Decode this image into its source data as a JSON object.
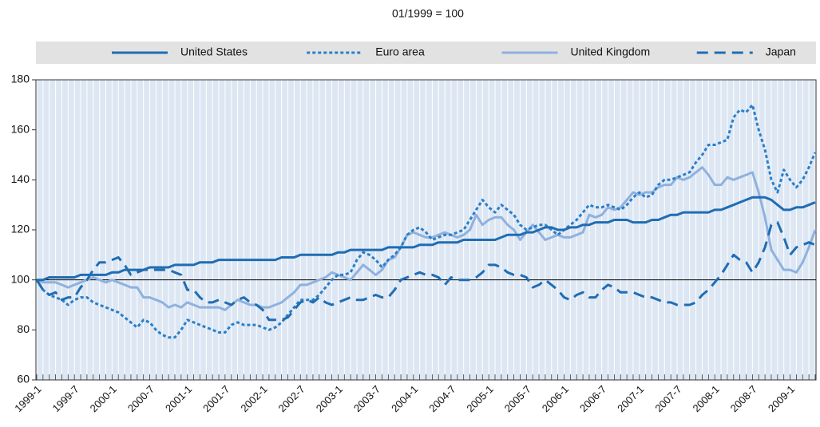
{
  "chart_data": {
    "type": "line",
    "subtitle": "01/1999 = 100",
    "categories": [
      "1999-1",
      null,
      null,
      null,
      null,
      null,
      "1999-7",
      null,
      null,
      null,
      null,
      null,
      "2000-1",
      null,
      null,
      null,
      null,
      null,
      "2000-7",
      null,
      null,
      null,
      null,
      null,
      "2001-1",
      null,
      null,
      null,
      null,
      null,
      "2001-7",
      null,
      null,
      null,
      null,
      null,
      "2002-1",
      null,
      null,
      null,
      null,
      null,
      "2002-7",
      null,
      null,
      null,
      null,
      null,
      "2003-1",
      null,
      null,
      null,
      null,
      null,
      "2003-7",
      null,
      null,
      null,
      null,
      null,
      "2004-1",
      null,
      null,
      null,
      null,
      null,
      "2004-7",
      null,
      null,
      null,
      null,
      null,
      "2005-1",
      null,
      null,
      null,
      null,
      null,
      "2005-7",
      null,
      null,
      null,
      null,
      null,
      "2006-1",
      null,
      null,
      null,
      null,
      null,
      "2006-7",
      null,
      null,
      null,
      null,
      null,
      "2007-1",
      null,
      null,
      null,
      null,
      null,
      "2007-7",
      null,
      null,
      null,
      null,
      null,
      "2008-1",
      null,
      null,
      null,
      null,
      null,
      "2008-7",
      null,
      null,
      null,
      null,
      null,
      "2009-1",
      null,
      null,
      null,
      null
    ],
    "series": [
      {
        "name": "United States",
        "color": "#1f6db3",
        "style": "solid",
        "values": [
          100,
          100,
          101,
          101,
          101,
          101,
          101,
          102,
          102,
          102,
          102,
          102,
          103,
          103,
          104,
          104,
          104,
          104,
          105,
          105,
          105,
          105,
          106,
          106,
          106,
          106,
          107,
          107,
          107,
          108,
          108,
          108,
          108,
          108,
          108,
          108,
          108,
          108,
          108,
          109,
          109,
          109,
          110,
          110,
          110,
          110,
          110,
          110,
          111,
          111,
          112,
          112,
          112,
          112,
          112,
          112,
          113,
          113,
          113,
          113,
          113,
          114,
          114,
          114,
          115,
          115,
          115,
          115,
          116,
          116,
          116,
          116,
          116,
          116,
          117,
          118,
          118,
          118,
          119,
          119,
          120,
          121,
          121,
          120,
          120,
          121,
          121,
          122,
          122,
          123,
          123,
          123,
          124,
          124,
          124,
          123,
          123,
          123,
          124,
          124,
          125,
          126,
          126,
          127,
          127,
          127,
          127,
          127,
          128,
          128,
          129,
          130,
          131,
          132,
          133,
          133,
          133,
          132,
          130,
          128,
          128,
          129,
          129,
          130,
          131
        ]
      },
      {
        "name": "Euro area",
        "color": "#2a7fc9",
        "style": "dotted",
        "values": [
          100,
          96,
          94,
          93,
          92,
          90,
          92,
          93,
          93,
          91,
          90,
          89,
          88,
          87,
          85,
          83,
          81,
          84,
          83,
          80,
          78,
          77,
          77,
          80,
          84,
          83,
          82,
          81,
          80,
          79,
          79,
          82,
          83,
          82,
          82,
          82,
          81,
          80,
          81,
          83,
          86,
          89,
          92,
          92,
          92,
          94,
          97,
          100,
          102,
          102,
          103,
          108,
          111,
          110,
          108,
          105,
          108,
          110,
          113,
          118,
          120,
          121,
          119,
          116,
          117,
          118,
          118,
          119,
          120,
          124,
          128,
          132,
          129,
          127,
          130,
          128,
          126,
          122,
          120,
          121,
          122,
          122,
          120,
          118,
          120,
          122,
          124,
          127,
          130,
          129,
          129,
          130,
          129,
          128,
          130,
          133,
          135,
          133,
          134,
          138,
          140,
          140,
          141,
          142,
          143,
          147,
          150,
          154,
          154,
          155,
          156,
          165,
          168,
          167,
          170,
          160,
          152,
          140,
          135,
          144,
          140,
          137,
          140,
          145,
          151
        ]
      },
      {
        "name": "United Kingdom",
        "color": "#8fb1de",
        "style": "solid",
        "values": [
          100,
          99,
          99,
          99,
          98,
          97,
          98,
          99,
          100,
          101,
          100,
          99,
          100,
          99,
          98,
          97,
          97,
          93,
          93,
          92,
          91,
          89,
          90,
          89,
          91,
          90,
          89,
          89,
          89,
          89,
          88,
          90,
          92,
          91,
          90,
          90,
          89,
          89,
          90,
          91,
          93,
          95,
          98,
          98,
          99,
          100,
          101,
          103,
          102,
          101,
          100,
          103,
          106,
          104,
          102,
          104,
          108,
          109,
          113,
          118,
          119,
          118,
          117,
          117,
          118,
          119,
          118,
          117,
          118,
          120,
          126,
          122,
          124,
          125,
          125,
          122,
          120,
          116,
          119,
          122,
          119,
          116,
          117,
          118,
          117,
          117,
          118,
          119,
          126,
          125,
          126,
          129,
          128,
          129,
          132,
          135,
          134,
          135,
          135,
          137,
          138,
          138,
          141,
          140,
          141,
          143,
          145,
          142,
          138,
          138,
          141,
          140,
          141,
          142,
          143,
          135,
          125,
          112,
          108,
          104,
          104,
          103,
          107,
          113,
          120
        ]
      },
      {
        "name": "Japan",
        "color": "#1f6db3",
        "style": "dashed",
        "values": [
          100,
          96,
          94,
          95,
          92,
          93,
          93,
          97,
          100,
          104,
          107,
          107,
          108,
          109,
          106,
          102,
          103,
          104,
          104,
          104,
          104,
          104,
          103,
          102,
          96,
          96,
          93,
          91,
          91,
          92,
          91,
          90,
          92,
          93,
          91,
          90,
          88,
          84,
          84,
          84,
          85,
          88,
          91,
          92,
          91,
          93,
          91,
          90,
          91,
          92,
          93,
          92,
          92,
          93,
          94,
          93,
          93,
          96,
          100,
          101,
          102,
          103,
          102,
          102,
          101,
          98,
          101,
          100,
          100,
          100,
          101,
          103,
          106,
          106,
          105,
          103,
          102,
          102,
          101,
          97,
          98,
          100,
          98,
          96,
          93,
          92,
          94,
          95,
          93,
          93,
          96,
          98,
          97,
          95,
          95,
          95,
          94,
          93,
          93,
          92,
          91,
          91,
          90,
          90,
          90,
          91,
          94,
          96,
          99,
          102,
          106,
          110,
          108,
          107,
          103,
          107,
          113,
          122,
          123,
          117,
          110,
          113,
          114,
          115,
          114
        ]
      }
    ],
    "reference_line": 100,
    "ylim": [
      60,
      180
    ],
    "yticks": [
      60,
      80,
      100,
      120,
      140,
      160,
      180
    ],
    "grid": true
  }
}
